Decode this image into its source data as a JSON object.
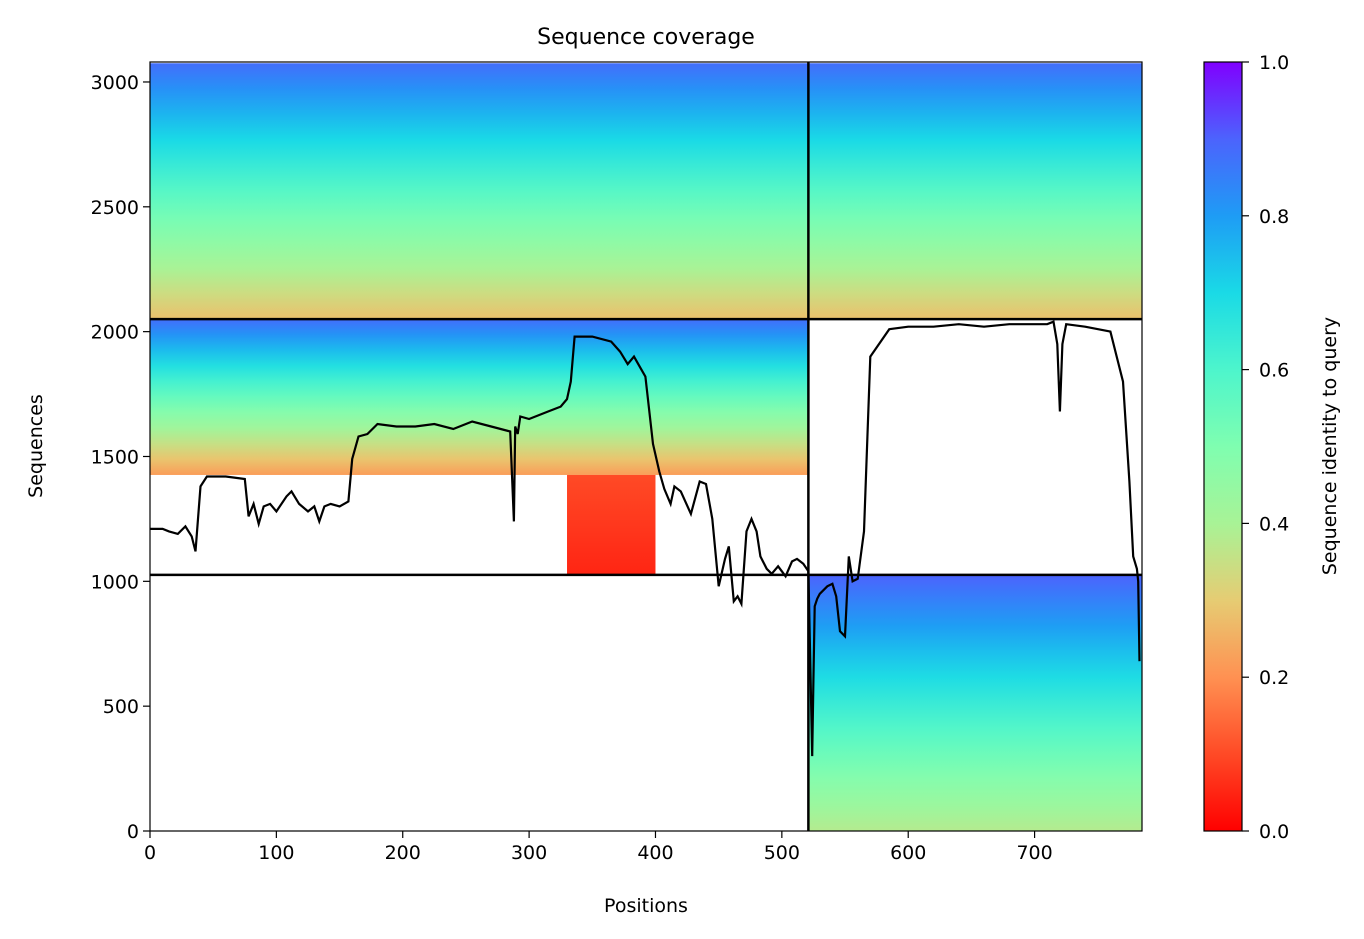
{
  "chart_data": {
    "type": "heatmap",
    "title": "Sequence coverage",
    "xlabel": "Positions",
    "ylabel": "Sequences",
    "xlim": [
      0,
      785
    ],
    "ylim": [
      0,
      3080
    ],
    "xticks": [
      0,
      100,
      200,
      300,
      400,
      500,
      600,
      700
    ],
    "yticks": [
      0,
      500,
      1000,
      1500,
      2000,
      2500,
      3000
    ],
    "colorbar": {
      "label": "Sequence identity to query",
      "range": [
        0.0,
        1.0
      ],
      "ticks": [
        "0.0",
        "0.2",
        "0.4",
        "0.6",
        "0.8",
        "1.0"
      ],
      "colormap": "rainbow_r"
    },
    "chain_boundary_x": 521,
    "block_boundaries_y": [
      1026,
      2050
    ],
    "blocks": [
      {
        "x": [
          0,
          521
        ],
        "y": [
          2050,
          3075
        ],
        "identity_bottom": 0.28,
        "identity_top": 0.88
      },
      {
        "x": [
          521,
          785
        ],
        "y": [
          2050,
          3075
        ],
        "identity_bottom": 0.28,
        "identity_top": 0.88
      },
      {
        "x": [
          0,
          521
        ],
        "y": [
          1426,
          2050
        ],
        "identity_bottom": 0.22,
        "identity_top": 0.88
      },
      {
        "x": [
          330,
          400
        ],
        "y": [
          1026,
          1426
        ],
        "identity_bottom": 0.05,
        "identity_top": 0.1
      },
      {
        "x": [
          521,
          785
        ],
        "y": [
          0,
          1026
        ],
        "identity_bottom": 0.38,
        "identity_top": 0.9
      }
    ],
    "coverage_line": {
      "x": [
        0,
        10,
        15,
        22,
        28,
        33,
        36,
        40,
        45,
        60,
        75,
        78,
        82,
        86,
        90,
        95,
        100,
        108,
        112,
        118,
        125,
        130,
        134,
        138,
        143,
        150,
        157,
        160,
        165,
        172,
        180,
        195,
        210,
        225,
        240,
        255,
        270,
        285,
        288,
        289,
        291,
        293,
        300,
        315,
        325,
        330,
        333,
        336,
        350,
        365,
        372,
        378,
        383,
        392,
        398,
        403,
        407,
        412,
        415,
        420,
        428,
        435,
        440,
        445,
        450,
        455,
        458,
        462,
        465,
        468,
        472,
        476,
        480,
        483,
        488,
        492,
        497,
        503,
        508,
        512,
        517,
        521,
        524,
        525,
        526,
        528,
        530,
        532,
        536,
        540,
        543,
        546,
        550,
        553,
        556,
        560,
        565,
        570,
        585,
        600,
        620,
        640,
        660,
        680,
        700,
        710,
        715,
        718,
        720,
        722,
        725,
        740,
        760,
        765,
        770,
        775,
        778,
        781,
        782,
        783,
        784
      ],
      "y": [
        1210,
        1210,
        1200,
        1190,
        1220,
        1180,
        1120,
        1380,
        1420,
        1420,
        1410,
        1260,
        1310,
        1230,
        1300,
        1310,
        1280,
        1340,
        1360,
        1310,
        1280,
        1300,
        1240,
        1300,
        1310,
        1300,
        1320,
        1490,
        1580,
        1590,
        1630,
        1620,
        1620,
        1630,
        1610,
        1640,
        1620,
        1600,
        1240,
        1620,
        1590,
        1660,
        1650,
        1680,
        1700,
        1730,
        1800,
        1980,
        1980,
        1960,
        1920,
        1870,
        1900,
        1820,
        1550,
        1440,
        1370,
        1310,
        1380,
        1360,
        1270,
        1400,
        1390,
        1250,
        980,
        1090,
        1140,
        920,
        940,
        910,
        1200,
        1250,
        1200,
        1100,
        1050,
        1030,
        1060,
        1020,
        1080,
        1090,
        1070,
        1040,
        300,
        600,
        900,
        930,
        950,
        960,
        980,
        990,
        940,
        800,
        780,
        1100,
        1000,
        1010,
        1200,
        1900,
        2010,
        2020,
        2020,
        2030,
        2020,
        2030,
        2030,
        2030,
        2040,
        1950,
        1680,
        1950,
        2030,
        2020,
        2000,
        1900,
        1800,
        1400,
        1100,
        1050,
        1000,
        680
      ]
    }
  }
}
